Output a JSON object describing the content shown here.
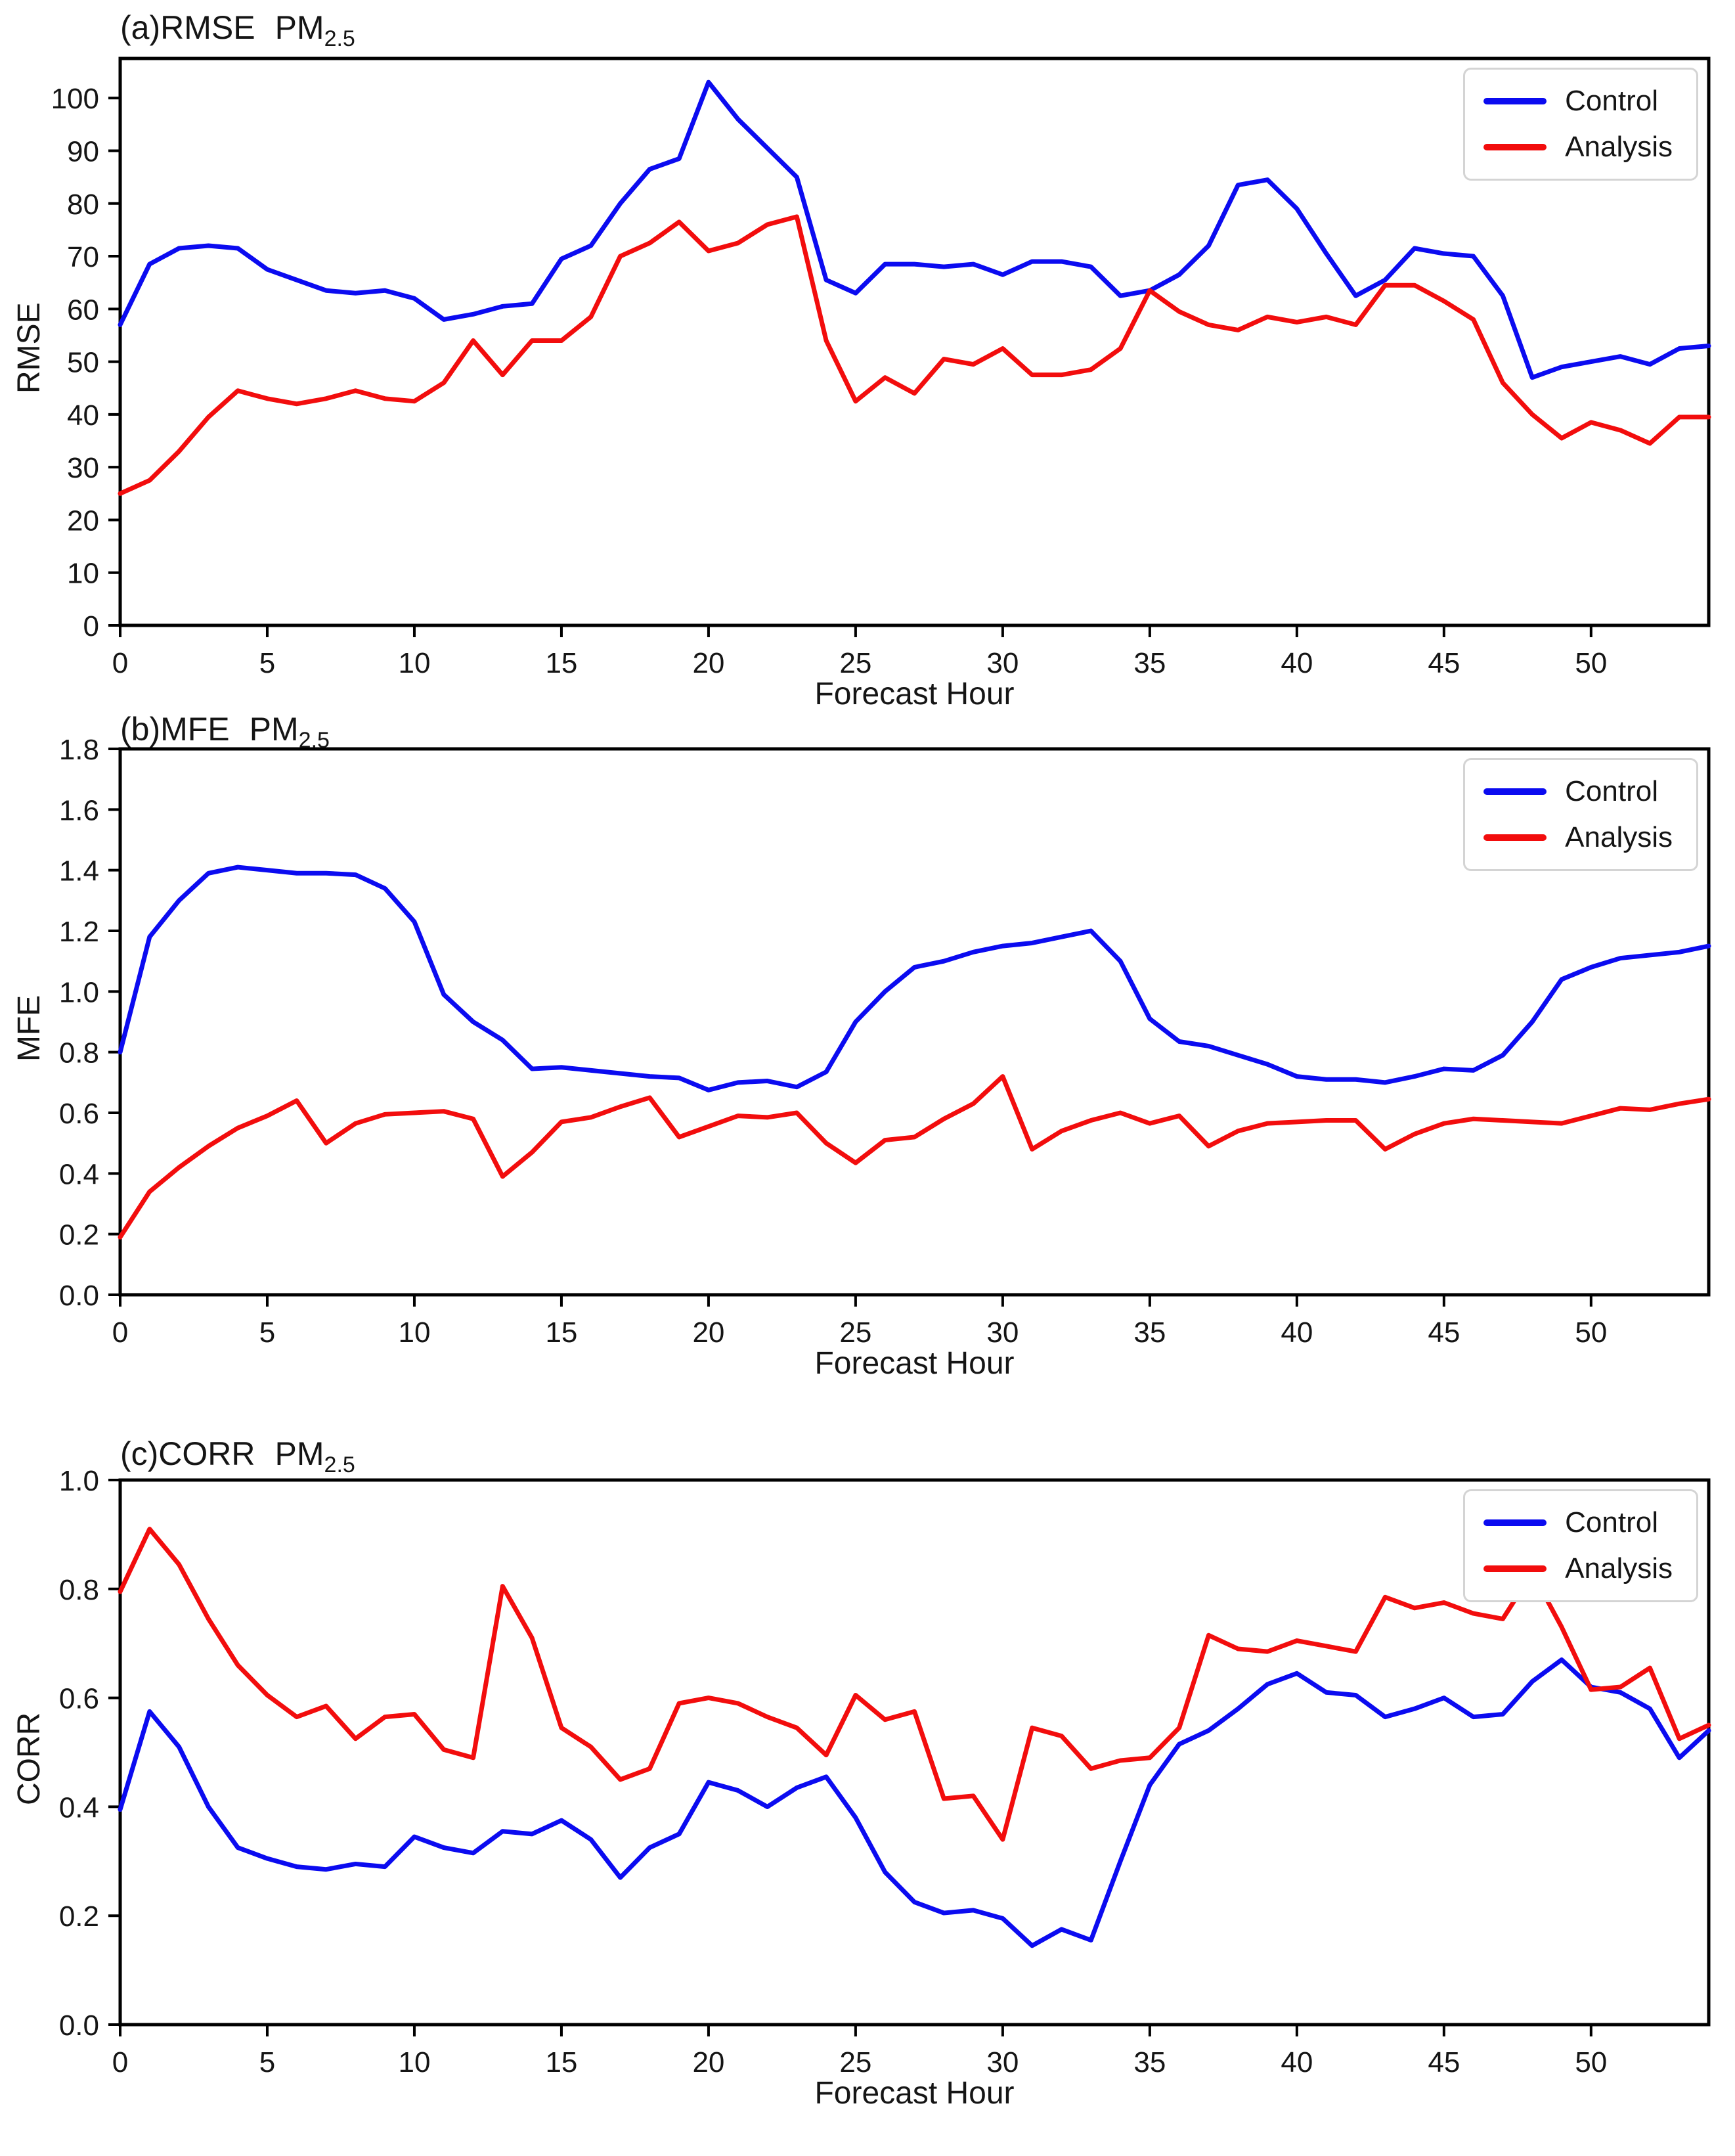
{
  "colors": {
    "axis": "#000000",
    "control": "#0b0bf0",
    "analysis": "#f20d0d",
    "legend_border": "#d4d4d4"
  },
  "forecast_hours": [
    0,
    1,
    2,
    3,
    4,
    5,
    6,
    7,
    8,
    9,
    10,
    11,
    12,
    13,
    14,
    15,
    16,
    17,
    18,
    19,
    20,
    21,
    22,
    23,
    24,
    25,
    26,
    27,
    28,
    29,
    30,
    31,
    32,
    33,
    34,
    35,
    36,
    37,
    38,
    39,
    40,
    41,
    42,
    43,
    44,
    45,
    46,
    47,
    48,
    49,
    50,
    51,
    52,
    53,
    54
  ],
  "chart_data": [
    {
      "id": "a",
      "type": "line",
      "title": "(a)RMSE",
      "title_unit": "PM",
      "title_unit_sub": "2.5",
      "xlabel": "Forecast Hour",
      "ylabel": "RMSE",
      "xlim": [
        0,
        54
      ],
      "ylim": [
        0,
        107.5
      ],
      "xticks": [
        0,
        5,
        10,
        15,
        20,
        25,
        30,
        35,
        40,
        45,
        50
      ],
      "yticks": [
        0,
        10,
        20,
        30,
        40,
        50,
        60,
        70,
        80,
        90,
        100
      ],
      "ytick_decimals": 0,
      "grid": false,
      "legend_position": "upper right",
      "series": [
        {
          "name": "Control",
          "color_key": "control",
          "values": [
            57,
            68.5,
            71.5,
            72,
            71.5,
            67.5,
            65.5,
            63.5,
            63,
            63.5,
            62,
            58,
            59,
            60.5,
            61,
            69.5,
            72,
            80,
            86.5,
            88.5,
            103,
            96,
            90.5,
            85,
            65.5,
            63,
            68.5,
            68.5,
            68,
            68.5,
            66.5,
            69,
            69,
            68,
            62.5,
            63.5,
            66.5,
            72,
            83.5,
            84.5,
            79,
            70.5,
            62.5,
            65.5,
            71.5,
            70.5,
            70,
            62.5,
            47,
            49,
            50,
            51,
            49.5,
            52.5,
            53
          ]
        },
        {
          "name": "Analysis",
          "color_key": "analysis",
          "values": [
            25,
            27.5,
            33,
            39.5,
            44.5,
            43,
            42,
            43,
            44.5,
            43,
            42.5,
            46,
            54,
            47.5,
            54,
            54,
            58.5,
            70,
            72.5,
            76.5,
            71,
            72.5,
            76,
            77.5,
            54,
            42.5,
            47,
            44,
            50.5,
            49.5,
            52.5,
            47.5,
            47.5,
            48.5,
            52.5,
            63.5,
            59.5,
            57,
            56,
            58.5,
            57.5,
            58.5,
            57,
            64.5,
            64.5,
            61.5,
            58,
            46,
            40,
            35.5,
            38.5,
            37,
            34.5,
            39.5,
            39.5
          ]
        }
      ]
    },
    {
      "id": "b",
      "type": "line",
      "title": "(b)MFE",
      "title_unit": "PM",
      "title_unit_sub": "2.5",
      "xlabel": "Forecast Hour",
      "ylabel": "MFE",
      "xlim": [
        0,
        54
      ],
      "ylim": [
        0,
        1.8
      ],
      "xticks": [
        0,
        5,
        10,
        15,
        20,
        25,
        30,
        35,
        40,
        45,
        50
      ],
      "yticks": [
        0.0,
        0.2,
        0.4,
        0.6,
        0.8,
        1.0,
        1.2,
        1.4,
        1.6,
        1.8
      ],
      "ytick_decimals": 1,
      "grid": false,
      "legend_position": "upper right",
      "series": [
        {
          "name": "Control",
          "color_key": "control",
          "values": [
            0.8,
            1.18,
            1.3,
            1.39,
            1.41,
            1.4,
            1.39,
            1.39,
            1.385,
            1.34,
            1.23,
            0.99,
            0.9,
            0.84,
            0.745,
            0.75,
            0.74,
            0.73,
            0.72,
            0.715,
            0.675,
            0.7,
            0.705,
            0.685,
            0.735,
            0.9,
            1.0,
            1.08,
            1.1,
            1.13,
            1.15,
            1.16,
            1.18,
            1.2,
            1.1,
            0.91,
            0.835,
            0.82,
            0.79,
            0.76,
            0.72,
            0.71,
            0.71,
            0.7,
            0.72,
            0.745,
            0.74,
            0.79,
            0.9,
            1.04,
            1.08,
            1.11,
            1.12,
            1.13,
            1.15
          ]
        },
        {
          "name": "Analysis",
          "color_key": "analysis",
          "values": [
            0.19,
            0.34,
            0.42,
            0.49,
            0.55,
            0.59,
            0.64,
            0.5,
            0.565,
            0.595,
            0.6,
            0.605,
            0.58,
            0.39,
            0.47,
            0.57,
            0.585,
            0.62,
            0.65,
            0.52,
            0.555,
            0.59,
            0.585,
            0.6,
            0.5,
            0.435,
            0.51,
            0.52,
            0.58,
            0.63,
            0.72,
            0.48,
            0.54,
            0.575,
            0.6,
            0.565,
            0.59,
            0.49,
            0.54,
            0.565,
            0.57,
            0.575,
            0.575,
            0.48,
            0.53,
            0.565,
            0.58,
            0.575,
            0.57,
            0.565,
            0.59,
            0.615,
            0.61,
            0.63,
            0.645
          ]
        }
      ]
    },
    {
      "id": "c",
      "type": "line",
      "title": "(c)CORR",
      "title_unit": "PM",
      "title_unit_sub": "2.5",
      "xlabel": "Forecast Hour",
      "ylabel": "CORR",
      "xlim": [
        0,
        54
      ],
      "ylim": [
        0,
        1.0
      ],
      "xticks": [
        0,
        5,
        10,
        15,
        20,
        25,
        30,
        35,
        40,
        45,
        50
      ],
      "yticks": [
        0.0,
        0.2,
        0.4,
        0.6,
        0.8,
        1.0
      ],
      "ytick_decimals": 1,
      "grid": false,
      "legend_position": "upper right",
      "series": [
        {
          "name": "Control",
          "color_key": "control",
          "values": [
            0.395,
            0.575,
            0.51,
            0.4,
            0.325,
            0.305,
            0.29,
            0.285,
            0.295,
            0.29,
            0.345,
            0.325,
            0.315,
            0.355,
            0.35,
            0.375,
            0.34,
            0.27,
            0.325,
            0.35,
            0.445,
            0.43,
            0.4,
            0.435,
            0.455,
            0.38,
            0.28,
            0.225,
            0.205,
            0.21,
            0.195,
            0.145,
            0.175,
            0.155,
            0.3,
            0.44,
            0.515,
            0.54,
            0.58,
            0.625,
            0.645,
            0.61,
            0.605,
            0.565,
            0.58,
            0.6,
            0.565,
            0.57,
            0.63,
            0.67,
            0.62,
            0.61,
            0.58,
            0.49,
            0.54
          ]
        },
        {
          "name": "Analysis",
          "color_key": "analysis",
          "values": [
            0.795,
            0.91,
            0.845,
            0.745,
            0.66,
            0.605,
            0.565,
            0.585,
            0.525,
            0.565,
            0.57,
            0.505,
            0.49,
            0.805,
            0.71,
            0.545,
            0.51,
            0.45,
            0.47,
            0.59,
            0.6,
            0.59,
            0.565,
            0.545,
            0.495,
            0.605,
            0.56,
            0.575,
            0.415,
            0.42,
            0.34,
            0.545,
            0.53,
            0.47,
            0.485,
            0.49,
            0.545,
            0.715,
            0.69,
            0.685,
            0.705,
            0.695,
            0.685,
            0.785,
            0.765,
            0.775,
            0.755,
            0.745,
            0.83,
            0.73,
            0.615,
            0.62,
            0.655,
            0.525,
            0.55
          ]
        }
      ]
    }
  ]
}
